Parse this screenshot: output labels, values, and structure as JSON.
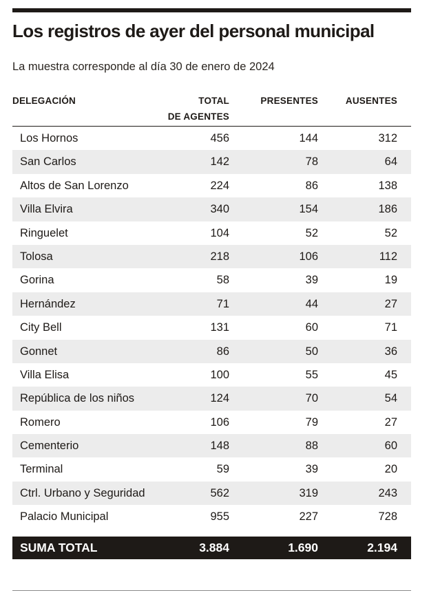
{
  "title": "Los registros de ayer del personal municipal",
  "subtitle": "La muestra corresponde al día 30 de enero de 2024",
  "colors": {
    "ink": "#1e1a17",
    "stripe": "#ececec",
    "total_bar": "#1e1a17",
    "total_text": "#ffffff"
  },
  "chart_data": {
    "type": "table",
    "columns": [
      "DELEGACIÓN",
      "TOTAL DE AGENTES",
      "PRESENTES",
      "AUSENTES"
    ],
    "header": {
      "delegacion": "DELEGACIÓN",
      "total_line1": "TOTAL",
      "total_line2": "DE AGENTES",
      "presentes": "PRESENTES",
      "ausentes": "AUSENTES"
    },
    "rows": [
      {
        "delegacion": "Los Hornos",
        "total": "456",
        "presentes": "144",
        "ausentes": "312"
      },
      {
        "delegacion": "San Carlos",
        "total": "142",
        "presentes": "78",
        "ausentes": "64"
      },
      {
        "delegacion": "Altos de San Lorenzo",
        "total": "224",
        "presentes": "86",
        "ausentes": "138"
      },
      {
        "delegacion": "Villa Elvira",
        "total": "340",
        "presentes": "154",
        "ausentes": "186"
      },
      {
        "delegacion": "Ringuelet",
        "total": "104",
        "presentes": "52",
        "ausentes": "52"
      },
      {
        "delegacion": "Tolosa",
        "total": "218",
        "presentes": "106",
        "ausentes": "112"
      },
      {
        "delegacion": "Gorina",
        "total": "58",
        "presentes": "39",
        "ausentes": "19"
      },
      {
        "delegacion": "Hernández",
        "total": "71",
        "presentes": "44",
        "ausentes": "27"
      },
      {
        "delegacion": "City Bell",
        "total": "131",
        "presentes": "60",
        "ausentes": "71"
      },
      {
        "delegacion": "Gonnet",
        "total": "86",
        "presentes": "50",
        "ausentes": "36"
      },
      {
        "delegacion": "Villa Elisa",
        "total": "100",
        "presentes": "55",
        "ausentes": "45"
      },
      {
        "delegacion": "República de los niños",
        "total": "124",
        "presentes": "70",
        "ausentes": "54"
      },
      {
        "delegacion": "Romero",
        "total": "106",
        "presentes": "79",
        "ausentes": "27"
      },
      {
        "delegacion": "Cementerio",
        "total": "148",
        "presentes": "88",
        "ausentes": "60"
      },
      {
        "delegacion": "Terminal",
        "total": "59",
        "presentes": "39",
        "ausentes": "20"
      },
      {
        "delegacion": "Ctrl. Urbano y Seguridad",
        "total": "562",
        "presentes": "319",
        "ausentes": "243"
      },
      {
        "delegacion": "Palacio Municipal",
        "total": "955",
        "presentes": "227",
        "ausentes": "728"
      }
    ],
    "totals": {
      "label": "SUMA TOTAL",
      "total": "3.884",
      "presentes": "1.690",
      "ausentes": "2.194"
    }
  }
}
